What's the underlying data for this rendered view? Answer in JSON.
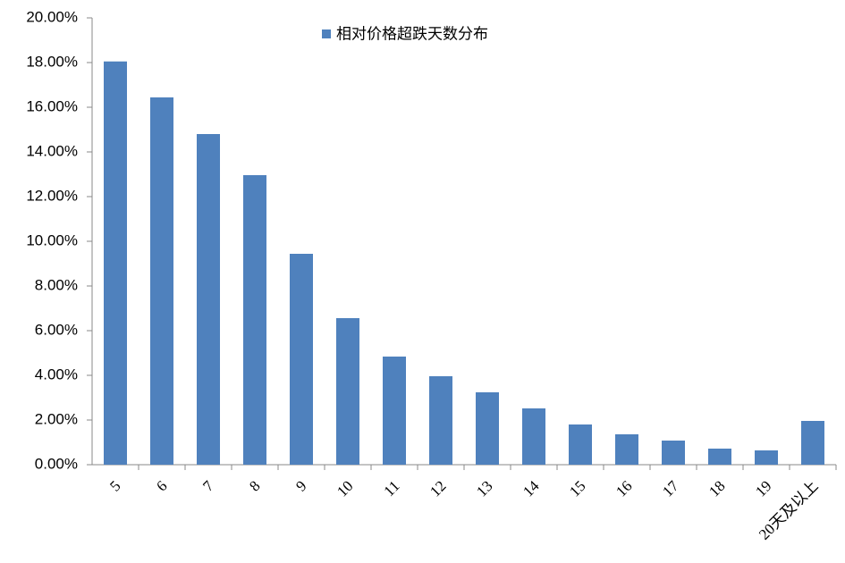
{
  "chart_data": {
    "type": "bar",
    "categories": [
      "5",
      "6",
      "7",
      "8",
      "9",
      "10",
      "11",
      "12",
      "13",
      "14",
      "15",
      "16",
      "17",
      "18",
      "19",
      "20天及以上"
    ],
    "series": [
      {
        "name": "相对价格超跌天数分布",
        "color": "#4f81bd",
        "values": [
          18.05,
          16.44,
          14.8,
          12.96,
          9.44,
          6.56,
          4.84,
          3.96,
          3.24,
          2.52,
          1.8,
          1.36,
          1.08,
          0.72,
          0.64,
          1.96
        ]
      }
    ],
    "ylim": [
      0,
      20
    ],
    "yticks": [
      {
        "value": 0,
        "label": "0.00%"
      },
      {
        "value": 2,
        "label": "2.00%"
      },
      {
        "value": 4,
        "label": "4.00%"
      },
      {
        "value": 6,
        "label": "6.00%"
      },
      {
        "value": 8,
        "label": "8.00%"
      },
      {
        "value": 10,
        "label": "10.00%"
      },
      {
        "value": 12,
        "label": "12.00%"
      },
      {
        "value": 14,
        "label": "14.00%"
      },
      {
        "value": 16,
        "label": "16.00%"
      },
      {
        "value": 18,
        "label": "18.00%"
      },
      {
        "value": 20,
        "label": "20.00%"
      }
    ],
    "grid": false
  }
}
